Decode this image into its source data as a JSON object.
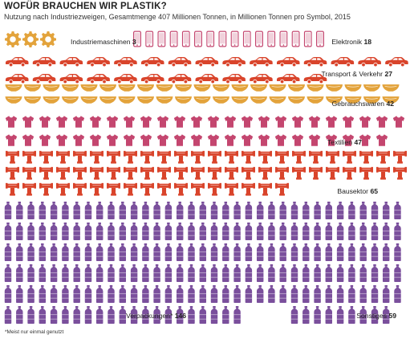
{
  "title": "WOFÜR BRAUCHEN WIR PLASTIK?",
  "subtitle": "Nutzung nach Industriezweigen, Gesamtmenge 407 Millionen Tonnen, in Millionen Tonnen pro Symbol, 2015",
  "footnote": "*Meist nur einmal genutzt",
  "chart_data": {
    "type": "pictogram",
    "title": "WOFÜR BRAUCHEN WIR PLASTIK?",
    "subtitle": "Nutzung nach Industriezweigen, Gesamtmenge 407 Millionen Tonnen, in Millionen Tonnen pro Symbol, 2015",
    "unit": "Millionen Tonnen",
    "total": 407,
    "categories": [
      {
        "label": "Industriemaschinen",
        "value": 3,
        "icon": "gear-icon",
        "color": "#e3a33b"
      },
      {
        "label": "Elektronik",
        "value": 18,
        "icon": "phone-icon",
        "color": "#c4466f"
      },
      {
        "label": "Transport & Verkehr",
        "value": 27,
        "icon": "car-icon",
        "color": "#d9442b"
      },
      {
        "label": "Gebrauchswaren",
        "value": 42,
        "icon": "bowl-icon",
        "color": "#e3a33b"
      },
      {
        "label": "Textilien",
        "value": 47,
        "icon": "shirt-icon",
        "color": "#c4466f"
      },
      {
        "label": "Bausektor",
        "value": 65,
        "icon": "pipe-icon",
        "color": "#d9442b"
      },
      {
        "label": "Verpackungen*",
        "value": 146,
        "icon": "bottle-icon",
        "color": "#7a4f9c"
      },
      {
        "label": "Sonstiges",
        "value": 59,
        "icon": "bottle-icon",
        "color": "#7a4f9c"
      }
    ]
  }
}
